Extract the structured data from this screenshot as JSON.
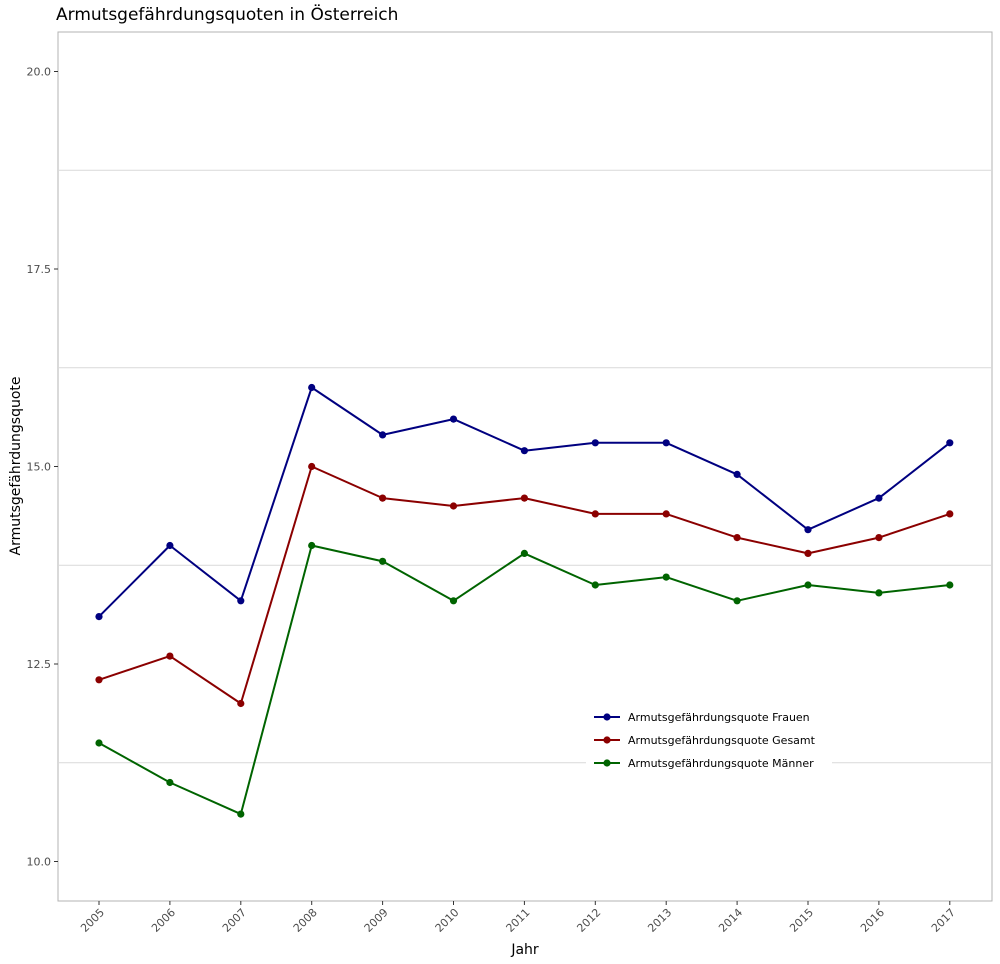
{
  "chart_data": {
    "type": "line",
    "title": "Armutsgefährdungsquoten in Österreich",
    "xlabel": "Jahr",
    "ylabel": "Armutsgefährdungsquote",
    "categories": [
      "2005",
      "2006",
      "2007",
      "2008",
      "2009",
      "2010",
      "2011",
      "2012",
      "2013",
      "2014",
      "2015",
      "2016",
      "2017"
    ],
    "ylim": [
      9.5,
      20.5
    ],
    "yticks": [
      10.0,
      12.5,
      15.0,
      17.5,
      20.0
    ],
    "ytick_labels": [
      "10.0",
      "12.5",
      "15.0",
      "17.5",
      "20.0"
    ],
    "grid": "horizontal",
    "legend_position": "inside-bottom-right",
    "series": [
      {
        "name": "Armutsgefährdungsquote Frauen",
        "color": "#000080",
        "values": [
          13.1,
          14.0,
          13.3,
          16.0,
          15.4,
          15.6,
          15.2,
          15.3,
          15.3,
          14.9,
          14.2,
          14.6,
          15.3
        ]
      },
      {
        "name": "Armutsgefährdungsquote Gesamt",
        "color": "#8b0000",
        "values": [
          12.3,
          12.6,
          12.0,
          15.0,
          14.6,
          14.5,
          14.6,
          14.4,
          14.4,
          14.1,
          13.9,
          14.1,
          14.4
        ]
      },
      {
        "name": "Armutsgefährdungsquote Männer",
        "color": "#006400",
        "values": [
          11.5,
          11.0,
          10.6,
          14.0,
          13.8,
          13.3,
          13.9,
          13.5,
          13.6,
          13.3,
          13.5,
          13.4,
          13.5
        ]
      }
    ]
  }
}
